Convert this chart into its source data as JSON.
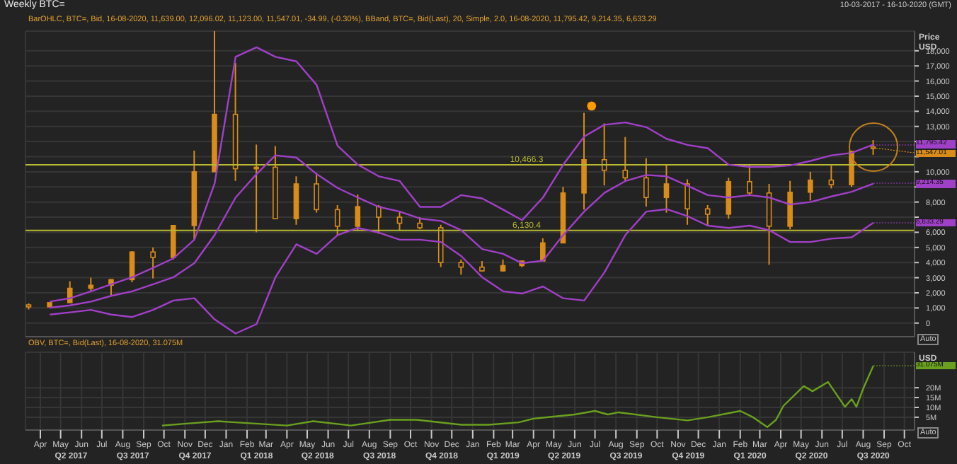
{
  "chart_data": [
    {
      "type": "candlestick",
      "title": "Weekly BTC=",
      "subtitle": "BarOHLC, BTC=, Bid, 16-08-2020, 11,639.00, 12,096.02, 11,123.00, 11,547.01, -34.99, (-0.30%), BBand, BTC=, Bid(Last), 20, Simple, 2.0, 16-08-2020, 11,795.42, 9,214.35, 6,633.29",
      "ylabel": "Price\nUSD",
      "color": "#d98c1a",
      "grid": true,
      "tick_labels": "y",
      "x": [
        "2017-03-15",
        "2017-04-15",
        "2017-05-15",
        "2017-06-15",
        "2017-07-15",
        "2017-08-15",
        "2017-09-15",
        "2017-10-15",
        "2017-11-15",
        "2017-12-15",
        "2018-01-15",
        "2018-02-15",
        "2018-03-15",
        "2018-04-15",
        "2018-05-15",
        "2018-06-15",
        "2018-07-15",
        "2018-08-15",
        "2018-09-15",
        "2018-10-15",
        "2018-11-15",
        "2018-12-15",
        "2019-01-15",
        "2019-02-15",
        "2019-03-15",
        "2019-04-15",
        "2019-05-15",
        "2019-06-15",
        "2019-07-15",
        "2019-08-15",
        "2019-09-15",
        "2019-10-15",
        "2019-11-15",
        "2019-12-15",
        "2020-01-15",
        "2020-02-15",
        "2020-03-15",
        "2020-04-15",
        "2020-05-15",
        "2020-06-15",
        "2020-07-15",
        "2020-08-16"
      ],
      "ohlc": [
        [
          1200,
          1300,
          900,
          1070
        ],
        [
          1070,
          1350,
          1060,
          1350
        ],
        [
          1350,
          2760,
          1350,
          2300
        ],
        [
          2300,
          3000,
          2100,
          2500
        ],
        [
          2500,
          2900,
          1850,
          2870
        ],
        [
          2870,
          4750,
          2700,
          4700
        ],
        [
          4700,
          5000,
          2950,
          4340
        ],
        [
          4340,
          6450,
          4200,
          6450
        ],
        [
          6450,
          11400,
          5500,
          10000
        ],
        [
          10000,
          19400,
          10000,
          13800
        ],
        [
          13800,
          17200,
          9400,
          10200
        ],
        [
          10200,
          11800,
          6000,
          10300
        ],
        [
          10300,
          11700,
          6900,
          6900
        ],
        [
          6900,
          9700,
          6500,
          9200
        ],
        [
          9200,
          9900,
          7300,
          7500
        ],
        [
          7500,
          7800,
          5800,
          6400
        ],
        [
          6400,
          8500,
          6100,
          7700
        ],
        [
          7700,
          7800,
          5900,
          7000
        ],
        [
          7000,
          7400,
          6100,
          6600
        ],
        [
          6600,
          7000,
          6200,
          6300
        ],
        [
          6300,
          6500,
          3700,
          4000
        ],
        [
          4000,
          4200,
          3200,
          3700
        ],
        [
          3700,
          4100,
          3400,
          3450
        ],
        [
          3450,
          4200,
          3400,
          3800
        ],
        [
          3800,
          4100,
          3700,
          4100
        ],
        [
          4100,
          5600,
          4100,
          5300
        ],
        [
          5300,
          9000,
          5300,
          8600
        ],
        [
          8600,
          13900,
          7500,
          10800
        ],
        [
          10800,
          13200,
          9100,
          10100
        ],
        [
          10100,
          12300,
          9400,
          9600
        ],
        [
          9600,
          10900,
          7700,
          8300
        ],
        [
          8300,
          10500,
          7300,
          9200
        ],
        [
          9200,
          9500,
          6500,
          7550
        ],
        [
          7550,
          7800,
          6400,
          7200
        ],
        [
          7200,
          9600,
          6900,
          9350
        ],
        [
          9350,
          10500,
          8500,
          8600
        ],
        [
          8600,
          9200,
          3850,
          6400
        ],
        [
          6400,
          9400,
          6200,
          8650
        ],
        [
          8650,
          10000,
          8100,
          9450
        ],
        [
          9450,
          10400,
          8900,
          9150
        ],
        [
          9150,
          11400,
          9000,
          11350
        ],
        [
          11639,
          12096.02,
          11123,
          11547.01
        ]
      ],
      "series": [
        {
          "type": "line",
          "color": "#a040c8",
          "values": [
            null,
            1420,
            1640,
            2100,
            2570,
            3030,
            3650,
            4280,
            5510,
            9230,
            17600,
            18230,
            17600,
            17300,
            15740,
            11720,
            10470,
            9700,
            9390,
            7680,
            7680,
            8460,
            8240,
            7500,
            6800,
            8300,
            10470,
            12330,
            13110,
            13260,
            12950,
            12180,
            11780,
            11560,
            10470,
            10320,
            10320,
            10420,
            10720,
            11090,
            11250,
            11795.42
          ]
        },
        {
          "type": "line",
          "color": "#a040c8",
          "values": [
            null,
            1020,
            1170,
            1420,
            1800,
            2100,
            2570,
            3030,
            3960,
            5820,
            8300,
            9850,
            11090,
            10940,
            9850,
            8930,
            8300,
            7680,
            7370,
            6910,
            6750,
            6140,
            4890,
            4580,
            3960,
            4120,
            5820,
            7370,
            8610,
            9390,
            9790,
            9700,
            9080,
            8460,
            8300,
            8460,
            8300,
            7840,
            8000,
            8370,
            8680,
            9214.35
          ]
        },
        {
          "type": "line",
          "color": "#a040c8",
          "values": [
            null,
            560,
            710,
            870,
            560,
            400,
            870,
            1490,
            1640,
            240,
            -690,
            -70,
            3030,
            5210,
            4580,
            5820,
            6290,
            5980,
            5510,
            5510,
            5360,
            4430,
            3030,
            2100,
            1950,
            2420,
            1640,
            1490,
            3350,
            5820,
            7370,
            7530,
            7070,
            6440,
            6290,
            6440,
            6140,
            5360,
            5360,
            5580,
            5670,
            6633.29
          ]
        },
        {
          "type": "scatter",
          "color": "#ff9900",
          "x": [
            "2019-06-26"
          ],
          "values": [
            14350
          ]
        }
      ],
      "ref_lines": [
        {
          "axis": "y",
          "value": 10466.3,
          "label": "10,466.3",
          "color": "#b8b832"
        },
        {
          "axis": "y",
          "value": 6130.4,
          "label": "6,130.4",
          "color": "#b8b832"
        }
      ],
      "annotations": [
        "10-03-2017 - 16-10-2020 (GMT)",
        {
          "text": "11,795.42",
          "x": "2020-08-16",
          "y": 11795.42
        },
        {
          "text": "11,547.01",
          "x": "2020-08-16",
          "y": 11547.01
        },
        {
          "text": "9,214.35",
          "x": "2020-08-16",
          "y": 9214.35
        },
        {
          "text": "6,633.29",
          "x": "2020-08-16",
          "y": 6633.29
        },
        "Auto"
      ],
      "xlim": [
        "2017-03-10",
        "2020-10-16"
      ],
      "xticks": [
        {
          "value": "2017-04-01",
          "label": null
        },
        {
          "value": "2017-05-01",
          "label": null
        },
        {
          "value": "2017-06-01",
          "label": null
        },
        {
          "value": "2017-07-01",
          "label": null
        },
        {
          "value": "2017-08-01",
          "label": null
        },
        {
          "value": "2017-09-01",
          "label": null
        },
        {
          "value": "2017-10-01",
          "label": null
        },
        {
          "value": "2017-11-01",
          "label": null
        },
        {
          "value": "2017-12-01",
          "label": null
        },
        {
          "value": "2018-01-01",
          "label": null
        },
        {
          "value": "2018-02-01",
          "label": null
        },
        {
          "value": "2018-03-01",
          "label": null
        },
        {
          "value": "2018-04-01",
          "label": null
        },
        {
          "value": "2018-05-01",
          "label": null
        },
        {
          "value": "2018-06-01",
          "label": null
        },
        {
          "value": "2018-07-01",
          "label": null
        },
        {
          "value": "2018-08-01",
          "label": null
        },
        {
          "value": "2018-09-01",
          "label": null
        },
        {
          "value": "2018-10-01",
          "label": null
        },
        {
          "value": "2018-11-01",
          "label": null
        },
        {
          "value": "2018-12-01",
          "label": null
        },
        {
          "value": "2019-01-01",
          "label": null
        },
        {
          "value": "2019-02-01",
          "label": null
        },
        {
          "value": "2019-03-01",
          "label": null
        },
        {
          "value": "2019-04-01",
          "label": null
        },
        {
          "value": "2019-05-01",
          "label": null
        },
        {
          "value": "2019-06-01",
          "label": null
        },
        {
          "value": "2019-07-01",
          "label": null
        },
        {
          "value": "2019-08-01",
          "label": null
        },
        {
          "value": "2019-09-01",
          "label": null
        },
        {
          "value": "2019-10-01",
          "label": null
        },
        {
          "value": "2019-11-01",
          "label": null
        },
        {
          "value": "2019-12-01",
          "label": null
        },
        {
          "value": "2020-01-01",
          "label": null
        },
        {
          "value": "2020-02-01",
          "label": null
        },
        {
          "value": "2020-03-01",
          "label": null
        },
        {
          "value": "2020-04-01",
          "label": null
        },
        {
          "value": "2020-05-01",
          "label": null
        },
        {
          "value": "2020-06-01",
          "label": null
        },
        {
          "value": "2020-07-01",
          "label": null
        },
        {
          "value": "2020-08-01",
          "label": null
        },
        {
          "value": "2020-09-01",
          "label": null
        },
        {
          "value": "2020-10-01",
          "label": null
        }
      ],
      "ylim": [
        -900,
        19300
      ],
      "yticks": [
        0,
        {
          "value": 1000,
          "label": "1,000"
        },
        {
          "value": 2000,
          "label": "2,000"
        },
        {
          "value": 3000,
          "label": "3,000"
        },
        {
          "value": 4000,
          "label": "4,000"
        },
        {
          "value": 5000,
          "label": "5,000"
        },
        {
          "value": 6000,
          "label": "6,000"
        },
        {
          "value": 7000,
          "label": null
        },
        {
          "value": 8000,
          "label": "8,000"
        },
        {
          "value": 9000,
          "label": null
        },
        {
          "value": 10000,
          "label": "10,000"
        },
        {
          "value": 11000,
          "label": null
        },
        {
          "value": 12000,
          "label": null
        },
        {
          "value": 13000,
          "label": "13,000"
        },
        {
          "value": 14000,
          "label": "14,000"
        },
        {
          "value": 15000,
          "label": "15,000"
        },
        {
          "value": 16000,
          "label": "16,000"
        },
        {
          "value": 17000,
          "label": "17,000"
        },
        {
          "value": 18000,
          "label": "18,000"
        }
      ]
    },
    {
      "type": "line",
      "subtitle": "OBV, BTC=, Bid(Last), 16-08-2020, 31.075M",
      "ylabel": "USD",
      "grid": true,
      "x": [
        "2017-09-28",
        "2017-12-20",
        "2018-01-15",
        "2018-04-01",
        "2018-05-10",
        "2018-07-05",
        "2018-09-01",
        "2018-10-10",
        "2018-12-15",
        "2019-01-25",
        "2019-03-10",
        "2019-04-01",
        "2019-06-01",
        "2019-07-01",
        "2019-07-20",
        "2019-08-05",
        "2019-10-01",
        "2019-11-15",
        "2019-12-15",
        "2020-02-01",
        "2020-02-20",
        "2020-03-12",
        "2020-03-25",
        "2020-04-05",
        "2020-05-05",
        "2020-05-18",
        "2020-06-10",
        "2020-07-05",
        "2020-07-15",
        "2020-07-22",
        "2020-08-01",
        "2020-08-16"
      ],
      "series": [
        {
          "color": "#6aa01e",
          "values": [
            0.8,
            3.0,
            2.4,
            0.8,
            3.0,
            0.8,
            3.7,
            3.7,
            1.2,
            1.2,
            2.4,
            4.3,
            6.4,
            8.2,
            6.4,
            7.5,
            5.0,
            3.4,
            5.0,
            8.2,
            5.0,
            0,
            3.7,
            10.8,
            20.8,
            18.2,
            22.9,
            10.3,
            14.2,
            10.3,
            19.5,
            31.075
          ]
        }
      ],
      "annotations": [
        {
          "text": "31.075M",
          "x": "2020-08-16",
          "y": 31.075
        },
        "Q2 2017",
        "Q3 2017",
        "Q4 2017",
        "Q1 2018",
        "Q2 2018",
        "Q3 2018",
        "Q4 2018",
        "Q1 2019",
        "Q2 2019",
        "Q3 2019",
        "Q4 2019",
        "Q1 2020",
        "Q2 2020",
        "Q3 2020",
        "Auto"
      ],
      "xlim": [
        "2017-03-10",
        "2020-10-16"
      ],
      "xticks": [
        {
          "value": "2017-04-01",
          "label": "Apr"
        },
        {
          "value": "2017-05-01",
          "label": "May"
        },
        {
          "value": "2017-06-01",
          "label": "Jun"
        },
        {
          "value": "2017-07-01",
          "label": "Jul"
        },
        {
          "value": "2017-08-01",
          "label": "Aug"
        },
        {
          "value": "2017-09-01",
          "label": "Sep"
        },
        {
          "value": "2017-10-01",
          "label": "Oct"
        },
        {
          "value": "2017-11-01",
          "label": "Nov"
        },
        {
          "value": "2017-12-01",
          "label": "Dec"
        },
        {
          "value": "2018-01-01",
          "label": "Jan"
        },
        {
          "value": "2018-02-01",
          "label": "Feb"
        },
        {
          "value": "2018-03-01",
          "label": "Mar"
        },
        {
          "value": "2018-04-01",
          "label": "Apr"
        },
        {
          "value": "2018-05-01",
          "label": "May"
        },
        {
          "value": "2018-06-01",
          "label": "Jun"
        },
        {
          "value": "2018-07-01",
          "label": "Jul"
        },
        {
          "value": "2018-08-01",
          "label": "Aug"
        },
        {
          "value": "2018-09-01",
          "label": "Sep"
        },
        {
          "value": "2018-10-01",
          "label": "Oct"
        },
        {
          "value": "2018-11-01",
          "label": "Nov"
        },
        {
          "value": "2018-12-01",
          "label": "Dec"
        },
        {
          "value": "2019-01-01",
          "label": "Jan"
        },
        {
          "value": "2019-02-01",
          "label": "Feb"
        },
        {
          "value": "2019-03-01",
          "label": "Mar"
        },
        {
          "value": "2019-04-01",
          "label": "Apr"
        },
        {
          "value": "2019-05-01",
          "label": "May"
        },
        {
          "value": "2019-06-01",
          "label": "Jun"
        },
        {
          "value": "2019-07-01",
          "label": "Jul"
        },
        {
          "value": "2019-08-01",
          "label": "Aug"
        },
        {
          "value": "2019-09-01",
          "label": "Sep"
        },
        {
          "value": "2019-10-01",
          "label": "Oct"
        },
        {
          "value": "2019-11-01",
          "label": "Nov"
        },
        {
          "value": "2019-12-01",
          "label": "Dec"
        },
        {
          "value": "2020-01-01",
          "label": "Jan"
        },
        {
          "value": "2020-02-01",
          "label": "Feb"
        },
        {
          "value": "2020-03-01",
          "label": "Mar"
        },
        {
          "value": "2020-04-01",
          "label": "Apr"
        },
        {
          "value": "2020-05-01",
          "label": "May"
        },
        {
          "value": "2020-06-01",
          "label": "Jun"
        },
        {
          "value": "2020-07-01",
          "label": "Jul"
        },
        {
          "value": "2020-08-01",
          "label": "Aug"
        },
        {
          "value": "2020-09-01",
          "label": "Sep"
        },
        {
          "value": "2020-10-01",
          "label": "Oct"
        }
      ],
      "ylim": [
        -1.5,
        38
      ],
      "yticks": [
        {
          "value": 5,
          "label": "5M"
        },
        {
          "value": 10,
          "label": "10M"
        },
        {
          "value": 15,
          "label": "15M"
        },
        {
          "value": 20,
          "label": "20M"
        }
      ]
    }
  ]
}
